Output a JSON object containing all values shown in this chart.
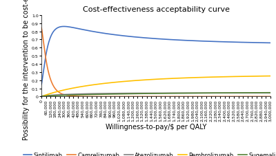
{
  "title": "Cost-effectiveness acceptability curve",
  "xlabel": "Willingness-to-pay/$ per QALY",
  "ylabel": "Possibility for the intervention to be cost-effective",
  "ylim": [
    0,
    1.0
  ],
  "xlim": [
    0,
    3000000
  ],
  "legend": [
    "Sintilimab",
    "Camrelizumab",
    "Atezolizumab",
    "Pembrolizumab",
    "Sugemalimab"
  ],
  "colors": [
    "#4472C4",
    "#ED7D31",
    "#7F7F7F",
    "#FFC000",
    "#548235"
  ],
  "title_fontsize": 8,
  "axis_fontsize": 7,
  "tick_fontsize": 4.5,
  "legend_fontsize": 6
}
